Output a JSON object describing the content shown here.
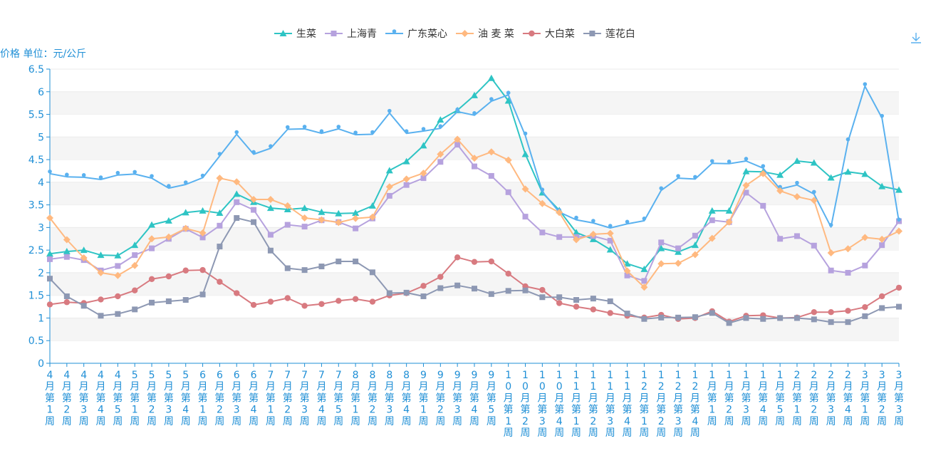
{
  "toolbar": {
    "download_icon": "download-icon"
  },
  "chart_data": {
    "type": "line",
    "title": "",
    "ylabel": "价格 单位：元/公斤",
    "xlabel": "",
    "ylim": [
      0,
      6.5
    ],
    "yticks": [
      "0",
      "0.5",
      "1",
      "1.5",
      "2",
      "2.5",
      "3",
      "3.5",
      "4",
      "4.5",
      "5",
      "5.5",
      "6",
      "6.5"
    ],
    "grid": "horizontal bands",
    "legend_position": "top-center",
    "categories": [
      "4月第1周",
      "4月第2周",
      "4月第3周",
      "4月第4周",
      "4月第5周",
      "5月第1周",
      "5月第2周",
      "5月第3周",
      "5月第4周",
      "6月第1周",
      "6月第2周",
      "6月第3周",
      "6月第4周",
      "7月第1周",
      "7月第2周",
      "7月第3周",
      "7月第4周",
      "7月第5周",
      "8月第1周",
      "8月第2周",
      "8月第3周",
      "8月第4周",
      "9月第1周",
      "9月第2周",
      "9月第3周",
      "9月第4周",
      "9月第5周",
      "10月第1周",
      "10月第2周",
      "10月第3周",
      "10月第4周",
      "11月第1周",
      "11月第2周",
      "11月第3周",
      "11月第4周",
      "12月第1周",
      "12月第2周",
      "12月第3周",
      "12月第4周",
      "1月第1周",
      "1月第2周",
      "1月第3周",
      "1月第4周",
      "1月第5周",
      "2月第1周",
      "2月第2周",
      "2月第3周",
      "2月第4周",
      "3月第1周",
      "3月第2周",
      "3月第3周"
    ],
    "series": [
      {
        "name": "生菜",
        "color": "#2ec4c4",
        "marker": "triangle",
        "values": [
          2.42,
          2.47,
          2.5,
          2.39,
          2.38,
          2.61,
          3.06,
          3.15,
          3.33,
          3.37,
          3.32,
          3.74,
          3.56,
          3.43,
          3.4,
          3.43,
          3.34,
          3.31,
          3.32,
          3.48,
          4.26,
          4.46,
          4.81,
          5.38,
          5.59,
          5.92,
          6.3,
          5.8,
          4.62,
          3.77,
          3.38,
          2.89,
          2.74,
          2.51,
          2.2,
          2.08,
          2.54,
          2.46,
          2.61,
          3.37,
          3.37,
          4.24,
          4.23,
          4.16,
          4.47,
          4.43,
          4.1,
          4.23,
          4.18,
          3.91,
          3.83
        ]
      },
      {
        "name": "上海青",
        "color": "#b6a2de",
        "marker": "square",
        "values": [
          2.3,
          2.35,
          2.28,
          2.05,
          2.15,
          2.39,
          2.54,
          2.75,
          2.97,
          2.78,
          3.04,
          3.56,
          3.39,
          2.84,
          3.06,
          3.02,
          3.16,
          3.12,
          2.98,
          3.2,
          3.7,
          3.94,
          4.09,
          4.45,
          4.83,
          4.35,
          4.14,
          3.78,
          3.24,
          2.89,
          2.79,
          2.79,
          2.81,
          2.71,
          1.94,
          1.82,
          2.67,
          2.54,
          2.82,
          3.16,
          3.12,
          3.77,
          3.48,
          2.75,
          2.81,
          2.6,
          2.05,
          2.0,
          2.16,
          2.61,
          3.14
        ]
      },
      {
        "name": "广东菜心",
        "color": "#5ab1ef",
        "marker": "pin",
        "values": [
          4.19,
          4.12,
          4.11,
          4.06,
          4.16,
          4.18,
          4.09,
          3.87,
          3.95,
          4.1,
          4.58,
          5.06,
          4.62,
          4.75,
          5.17,
          5.18,
          5.08,
          5.18,
          5.05,
          5.06,
          5.53,
          5.08,
          5.13,
          5.19,
          5.56,
          5.48,
          5.79,
          5.93,
          5.03,
          3.79,
          3.34,
          3.17,
          3.1,
          2.99,
          3.08,
          3.15,
          3.82,
          4.09,
          4.07,
          4.42,
          4.41,
          4.47,
          4.31,
          3.85,
          3.94,
          3.74,
          3.01,
          4.9,
          6.12,
          5.42,
          3.13
        ]
      },
      {
        "name": "油 麦 菜",
        "color": "#ffb980",
        "marker": "diamond",
        "values": [
          3.21,
          2.73,
          2.33,
          2.0,
          1.94,
          2.16,
          2.75,
          2.79,
          2.98,
          2.88,
          4.09,
          4.01,
          3.62,
          3.62,
          3.48,
          3.21,
          3.17,
          3.11,
          3.2,
          3.23,
          3.9,
          4.07,
          4.2,
          4.62,
          4.95,
          4.53,
          4.67,
          4.49,
          3.85,
          3.53,
          3.33,
          2.73,
          2.85,
          2.87,
          2.04,
          1.68,
          2.2,
          2.21,
          2.4,
          2.76,
          3.12,
          3.93,
          4.19,
          3.81,
          3.68,
          3.6,
          2.44,
          2.53,
          2.78,
          2.74,
          2.92
        ]
      },
      {
        "name": "大白菜",
        "color": "#d87a80",
        "marker": "circle",
        "values": [
          1.3,
          1.35,
          1.33,
          1.41,
          1.48,
          1.61,
          1.86,
          1.92,
          2.05,
          2.06,
          1.8,
          1.55,
          1.29,
          1.36,
          1.44,
          1.27,
          1.31,
          1.38,
          1.42,
          1.36,
          1.5,
          1.55,
          1.71,
          1.91,
          2.34,
          2.24,
          2.25,
          1.98,
          1.7,
          1.62,
          1.33,
          1.25,
          1.19,
          1.11,
          1.05,
          1.01,
          1.07,
          0.98,
          1.0,
          1.15,
          0.92,
          1.05,
          1.06,
          1.0,
          1.01,
          1.13,
          1.13,
          1.16,
          1.24,
          1.48,
          1.67
        ]
      },
      {
        "name": "莲花白",
        "color": "#8d98b3",
        "marker": "square",
        "values": [
          1.87,
          1.48,
          1.27,
          1.05,
          1.09,
          1.19,
          1.34,
          1.37,
          1.4,
          1.52,
          2.58,
          3.21,
          3.12,
          2.49,
          2.1,
          2.06,
          2.14,
          2.25,
          2.25,
          2.01,
          1.55,
          1.56,
          1.48,
          1.66,
          1.72,
          1.65,
          1.53,
          1.6,
          1.61,
          1.46,
          1.46,
          1.4,
          1.43,
          1.37,
          1.1,
          0.98,
          1.01,
          1.01,
          1.02,
          1.11,
          0.89,
          1.0,
          0.98,
          1.0,
          1.0,
          0.97,
          0.91,
          0.91,
          1.04,
          1.22,
          1.25
        ]
      }
    ]
  }
}
